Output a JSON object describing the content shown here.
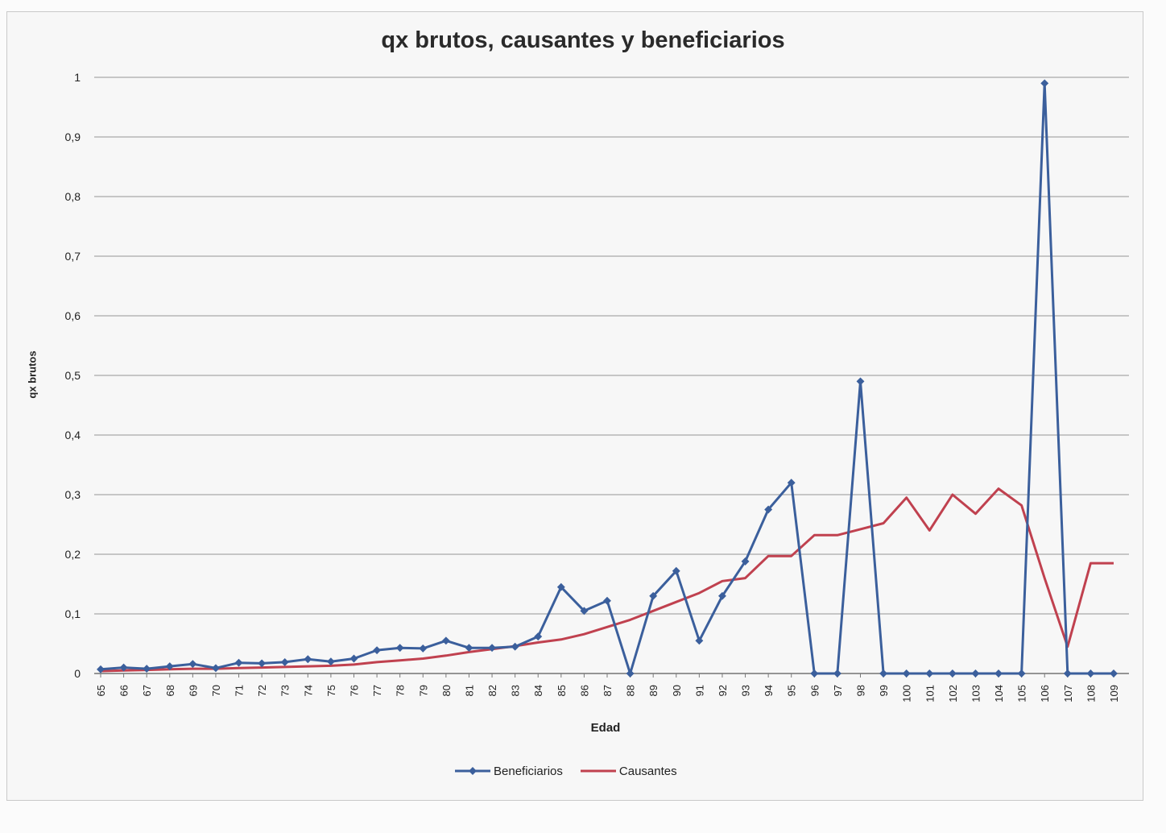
{
  "chart_data": {
    "type": "line",
    "title": "qx brutos, causantes y beneficiarios",
    "xlabel": "Edad",
    "ylabel": "qx brutos",
    "ylim": [
      0,
      1
    ],
    "yticks": [
      "0",
      "0,1",
      "0,2",
      "0,3",
      "0,4",
      "0,5",
      "0,6",
      "0,7",
      "0,8",
      "0,9",
      "1"
    ],
    "grid": true,
    "legend_position": "bottom",
    "categories": [
      "65",
      "66",
      "67",
      "68",
      "69",
      "70",
      "71",
      "72",
      "73",
      "74",
      "75",
      "76",
      "77",
      "78",
      "79",
      "80",
      "81",
      "82",
      "83",
      "84",
      "85",
      "86",
      "87",
      "88",
      "89",
      "90",
      "91",
      "92",
      "93",
      "94",
      "95",
      "96",
      "97",
      "98",
      "99",
      "100",
      "101",
      "102",
      "103",
      "104",
      "105",
      "106",
      "107",
      "108",
      "109"
    ],
    "series": [
      {
        "name": "Beneficiarios",
        "color": "#3b5f9c",
        "markers": true,
        "values": [
          0.007,
          0.01,
          0.008,
          0.012,
          0.016,
          0.009,
          0.018,
          0.017,
          0.019,
          0.024,
          0.02,
          0.025,
          0.039,
          0.043,
          0.042,
          0.055,
          0.043,
          0.043,
          0.045,
          0.062,
          0.145,
          0.105,
          0.122,
          0,
          0.13,
          0.172,
          0.055,
          0.13,
          0.188,
          0.275,
          0.32,
          0,
          0,
          0.49,
          0,
          0,
          0,
          0,
          0,
          0,
          0,
          0.99,
          0,
          0,
          0
        ]
      },
      {
        "name": "Causantes",
        "color": "#c0414f",
        "markers": false,
        "values": [
          0.004,
          0.005,
          0.006,
          0.007,
          0.008,
          0.008,
          0.009,
          0.01,
          0.011,
          0.012,
          0.013,
          0.015,
          0.019,
          0.022,
          0.025,
          0.03,
          0.036,
          0.041,
          0.046,
          0.052,
          0.057,
          0.066,
          0.078,
          0.09,
          0.105,
          0.12,
          0.135,
          0.155,
          0.16,
          0.197,
          0.197,
          0.232,
          0.232,
          0.242,
          0.252,
          0.295,
          0.24,
          0.3,
          0.268,
          0.31,
          0.282,
          0.16,
          0.045,
          0.185,
          0.185
        ]
      }
    ]
  }
}
